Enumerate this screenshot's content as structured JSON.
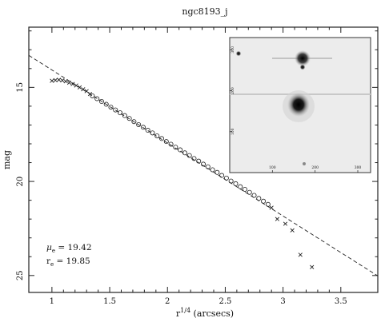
{
  "chart_data": {
    "type": "scatter",
    "title": "ngc8193_j",
    "xlabel_base": "r",
    "xlabel_sup": "1/4",
    "xlabel_rest": " (arcsecs)",
    "ylabel": "mag",
    "xlim": [
      0.8,
      3.82
    ],
    "ylim": [
      25.9,
      11.8
    ],
    "y_inverted": true,
    "x_ticks": [
      1,
      1.5,
      2,
      2.5,
      3,
      3.5
    ],
    "x_tick_labels": [
      "1",
      "1.5",
      "2",
      "2.5",
      "3",
      "3.5"
    ],
    "y_ticks": [
      15,
      20,
      25
    ],
    "y_tick_labels": [
      "15",
      "20",
      "25"
    ],
    "fit_line": {
      "style": "dashed",
      "x": [
        0.8,
        3.82
      ],
      "y": [
        13.3,
        25.02
      ]
    },
    "series": [
      {
        "marker": "cross",
        "x": [
          1.0,
          1.03,
          1.06,
          1.09,
          1.12,
          1.15,
          1.18,
          1.21,
          1.24,
          1.27,
          1.3,
          1.33,
          2.9,
          2.95,
          3.02,
          3.08,
          3.15,
          3.25
        ],
        "y": [
          14.65,
          14.62,
          14.6,
          14.63,
          14.68,
          14.75,
          14.82,
          14.9,
          15.0,
          15.1,
          15.2,
          15.35,
          21.4,
          22.0,
          22.25,
          22.6,
          23.9,
          24.55
        ]
      },
      {
        "marker": "circle",
        "x": [
          1.35,
          1.39,
          1.43,
          1.47,
          1.51,
          1.55,
          1.59,
          1.63,
          1.67,
          1.71,
          1.75,
          1.79,
          1.83,
          1.87,
          1.91,
          1.95,
          1.99,
          2.03,
          2.07,
          2.11,
          2.15,
          2.19,
          2.23,
          2.27,
          2.31,
          2.35,
          2.39,
          2.43,
          2.47,
          2.51,
          2.55,
          2.59,
          2.63,
          2.67,
          2.71,
          2.75,
          2.79,
          2.83,
          2.87
        ],
        "y": [
          15.45,
          15.6,
          15.75,
          15.9,
          16.05,
          16.2,
          16.35,
          16.5,
          16.65,
          16.82,
          16.98,
          17.12,
          17.28,
          17.42,
          17.58,
          17.72,
          17.88,
          18.02,
          18.18,
          18.32,
          18.48,
          18.62,
          18.78,
          18.92,
          19.08,
          19.22,
          19.38,
          19.52,
          19.68,
          19.82,
          19.98,
          20.12,
          20.28,
          20.42,
          20.58,
          20.74,
          20.9,
          21.05,
          21.22
        ]
      }
    ],
    "annotations": [
      {
        "symbol": "μ",
        "sub": "e",
        "text": " = 19.42"
      },
      {
        "symbol": "r",
        "sub": "e",
        "text": " = 19.85"
      }
    ],
    "inset": {
      "x_ticks": [
        100,
        200,
        300
      ],
      "x_tick_labels": [
        "100",
        "200",
        "300"
      ],
      "y_ticks": [
        100,
        200,
        300
      ],
      "y_tick_labels": [
        "100",
        "200",
        "300"
      ]
    }
  }
}
